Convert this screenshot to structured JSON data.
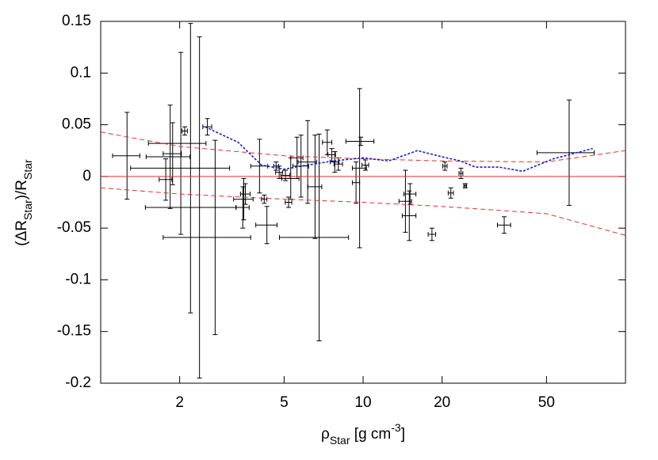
{
  "chart_data": {
    "type": "scatter",
    "xlabel": [
      {
        "text": "ρ"
      },
      {
        "text": "Star",
        "shift": "sub"
      },
      {
        "text": " [g cm"
      },
      {
        "text": "-3",
        "shift": "super"
      },
      {
        "text": "]"
      }
    ],
    "ylabel": [
      {
        "text": "(ΔR"
      },
      {
        "text": "Star",
        "shift": "sub"
      },
      {
        "text": ")/R"
      },
      {
        "text": "Star",
        "shift": "sub"
      }
    ],
    "xlim": [
      1,
      100
    ],
    "xticks": [
      2,
      5,
      10,
      20,
      50
    ],
    "xlog": true,
    "ylim": [
      -0.2,
      0.15
    ],
    "yticks": [
      0.15,
      0.1,
      0.05,
      0,
      -0.05,
      -0.1,
      -0.15,
      -0.2
    ],
    "series": [
      {
        "kind": "errorbar",
        "color": "#000000",
        "x": [
          1.26,
          1.84,
          1.88,
          2.09,
          2.55,
          1.77,
          2.02,
          2.2,
          2.38,
          2.73,
          3.51,
          3.56,
          3.48,
          4.2,
          4.3,
          4.03,
          4.66,
          4.79,
          5.06,
          5.2,
          5.3,
          5.6,
          5.8,
          6.15,
          6.8,
          6.56,
          7.3,
          7.6,
          7.8,
          8.05,
          9.4,
          9.7,
          10.2,
          9.8,
          14.5,
          15,
          15.1,
          18.3,
          20.5,
          21.6,
          23.6,
          24.5,
          34.5,
          61
        ],
        "values": [
          0.02,
          0.019,
          0.022,
          0.044,
          0.048,
          -0.003,
          0.032,
          0.008,
          -0.03,
          -0.059,
          -0.022,
          -0.017,
          -0.03,
          -0.022,
          -0.047,
          0.01,
          0.01,
          0.004,
          0.001,
          -0.025,
          -0.002,
          0.018,
          0.01,
          0.014,
          -0.059,
          -0.01,
          0.033,
          0.021,
          0.014,
          0.012,
          -0.006,
          0.008,
          0.011,
          0.034,
          -0.024,
          -0.038,
          -0.017,
          -0.056,
          0.01,
          -0.016,
          0.003,
          -0.009,
          -0.047,
          0.023
        ],
        "x_err": [
          0.15,
          0.35,
          0.15,
          0.05,
          0.1,
          0.1,
          0.5,
          0.9,
          0.9,
          1,
          0.3,
          0.15,
          0.2,
          0.1,
          0.4,
          0.3,
          0.1,
          0.15,
          0.2,
          0.15,
          0.4,
          0.3,
          0.4,
          0.5,
          2,
          0.4,
          0.3,
          0.25,
          0.3,
          0.3,
          0.3,
          0.6,
          0.3,
          1.2,
          0.8,
          0.9,
          0.8,
          0.6,
          0.4,
          0.5,
          0.4,
          0.3,
          2,
          15
        ],
        "y_err": [
          0.042,
          0.05,
          0.03,
          0.004,
          0.008,
          0.02,
          0.088,
          0.14,
          0.165,
          0.094,
          0.02,
          0.01,
          0.02,
          0.004,
          0.018,
          0.026,
          0.004,
          0.006,
          0.005,
          0.005,
          0.02,
          0.02,
          0.03,
          0.04,
          0.1,
          0.05,
          0.012,
          0.006,
          0.01,
          0.006,
          0.02,
          0.077,
          0.005,
          0.004,
          0.03,
          0.024,
          0.01,
          0.006,
          0.004,
          0.005,
          0.005,
          0.002,
          0.008,
          0.051
        ]
      },
      {
        "kind": "line",
        "color": "#e0312a",
        "style": "solid",
        "x": [
          1,
          100
        ],
        "values": [
          0,
          0
        ]
      },
      {
        "kind": "line",
        "color": "#e0312a",
        "style": "dashed",
        "x": [
          1,
          2,
          5,
          10,
          20,
          50,
          100
        ],
        "values": [
          0.043,
          0.029,
          0.02,
          0.017,
          0.015,
          0.014,
          0.025
        ]
      },
      {
        "kind": "line",
        "color": "#e0312a",
        "style": "dashed",
        "x": [
          1,
          2,
          5,
          10,
          20,
          50,
          100
        ],
        "values": [
          -0.011,
          -0.017,
          -0.022,
          -0.025,
          -0.029,
          -0.036,
          -0.057
        ]
      },
      {
        "kind": "line",
        "color": "#1a1ad6",
        "style": "dotted",
        "x": [
          2.5,
          3.34,
          4.1,
          5,
          5.8,
          7.7,
          10,
          12.5,
          16.1,
          20,
          23.5,
          26.8,
          33,
          40.6,
          53,
          75
        ],
        "values": [
          0.048,
          0.033,
          0.011,
          0.007,
          0.01,
          0.015,
          0.018,
          0.015,
          0.025,
          0.019,
          0.015,
          0.009,
          0.009,
          0.005,
          0.017,
          0.027
        ]
      }
    ]
  }
}
